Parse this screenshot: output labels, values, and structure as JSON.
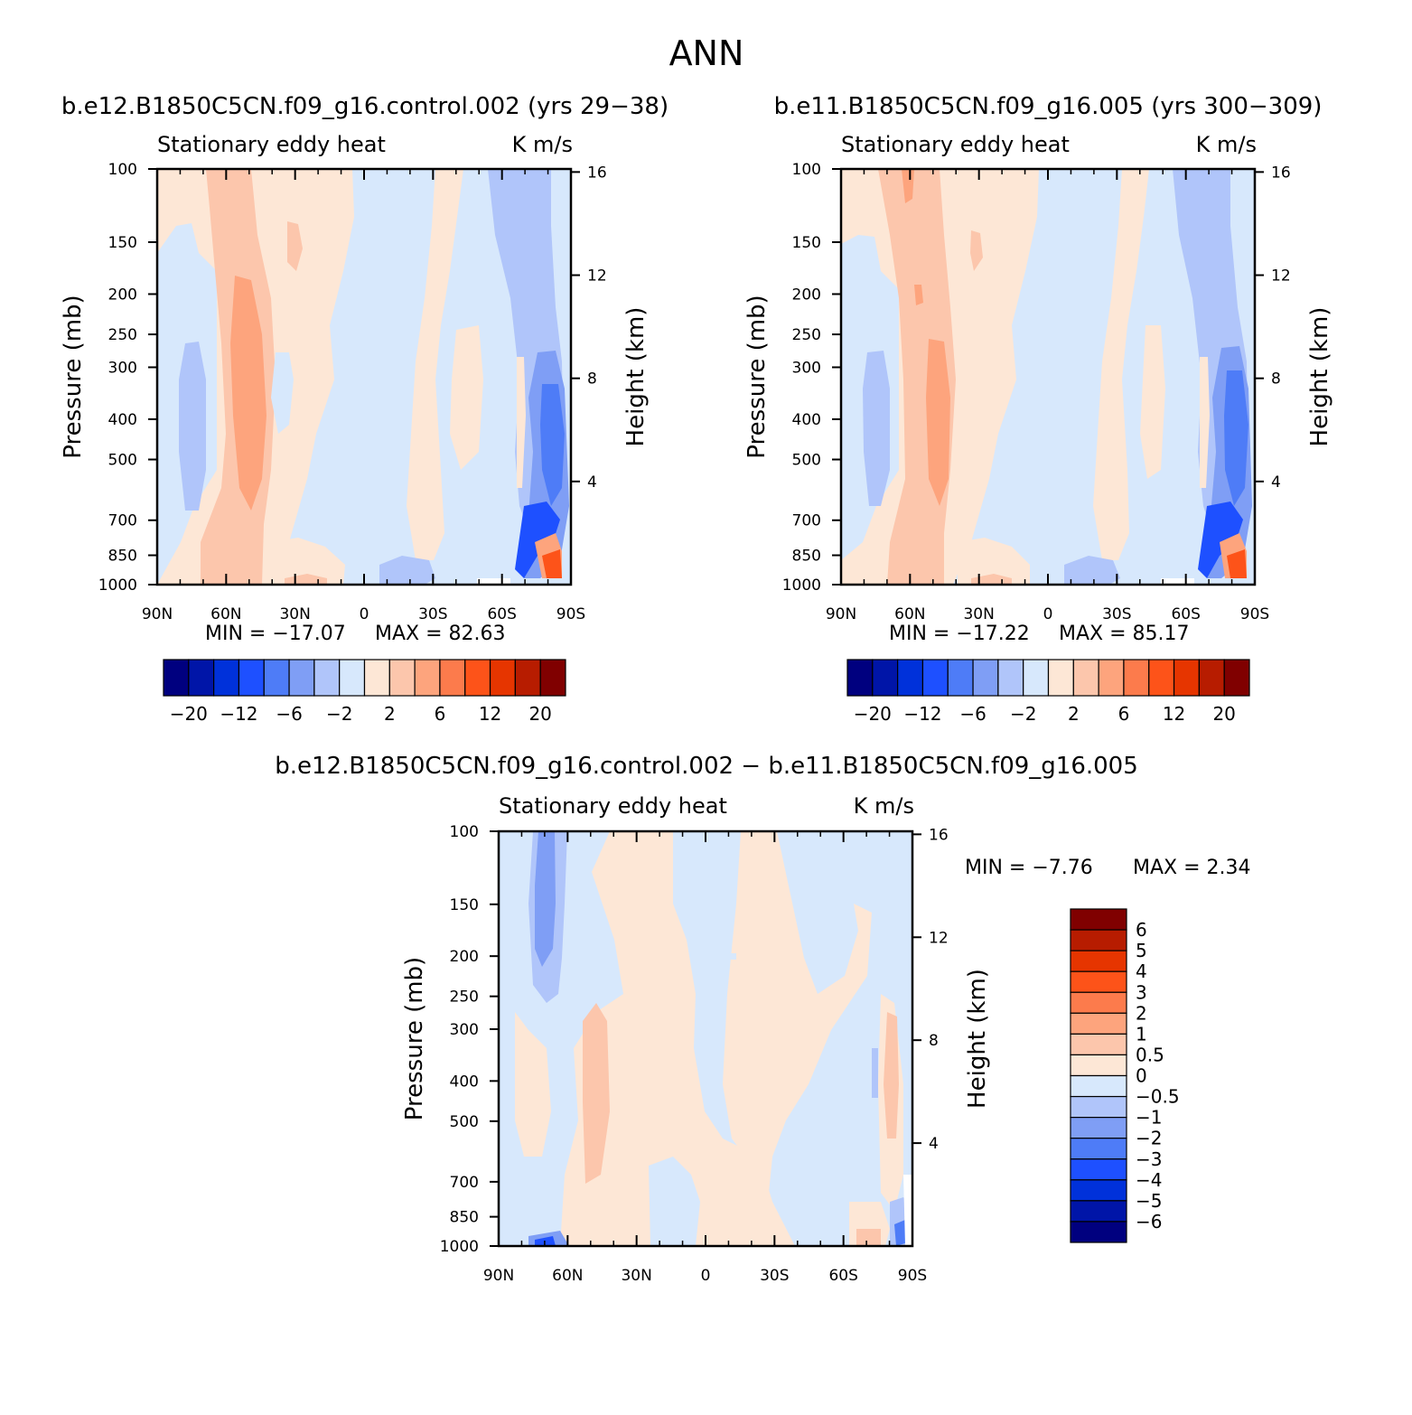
{
  "figure": {
    "title": "ANN",
    "colors": {
      "full_levels": [
        "#00007f",
        "#0015a8",
        "#0031da",
        "#1e50ff",
        "#4e7cf7",
        "#7f9ef5",
        "#b0c5fa",
        "#d7e8fc",
        "#fde7d6",
        "#fcc6ac",
        "#fda47d",
        "#fc7b4c",
        "#fd5319",
        "#e63500",
        "#b71c00",
        "#800000"
      ],
      "diff_levels": [
        "#00007f",
        "#0015a8",
        "#0031da",
        "#1e50ff",
        "#4e7cf7",
        "#7f9ef5",
        "#b0c5fa",
        "#d7e8fc",
        "#fde7d6",
        "#fcc6ac",
        "#fda47d",
        "#fc7b4c",
        "#fd5319",
        "#e63500",
        "#b71c00",
        "#800000"
      ]
    }
  },
  "chart_data": [
    {
      "type": "heatmap",
      "panel": "top-left",
      "case_title": "b.e12.B1850C5CN.f09_g16.control.002 (yrs 29−38)",
      "variable": "Stationary eddy heat",
      "units": "K m/s",
      "ylabel": "Pressure (mb)",
      "y2label": "Height (km)",
      "x_ticks": [
        "90N",
        "60N",
        "30N",
        "0",
        "30S",
        "60S",
        "90S"
      ],
      "y_ticks": [
        "100",
        "150",
        "200",
        "250",
        "300",
        "400",
        "500",
        "700",
        "850",
        "1000"
      ],
      "y2_ticks": [
        "16",
        "12",
        "8",
        "4"
      ],
      "min_label": "MIN = −17.07",
      "max_label": "MAX =  82.63",
      "colorbar_labels": [
        "−20",
        "−12",
        "−6",
        "−2",
        "2",
        "6",
        "12",
        "20"
      ]
    },
    {
      "type": "heatmap",
      "panel": "top-right",
      "case_title": "b.e11.B1850C5CN.f09_g16.005 (yrs 300−309)",
      "variable": "Stationary eddy heat",
      "units": "K m/s",
      "ylabel": "Pressure (mb)",
      "y2label": "Height (km)",
      "x_ticks": [
        "90N",
        "60N",
        "30N",
        "0",
        "30S",
        "60S",
        "90S"
      ],
      "y_ticks": [
        "100",
        "150",
        "200",
        "250",
        "300",
        "400",
        "500",
        "700",
        "850",
        "1000"
      ],
      "y2_ticks": [
        "16",
        "12",
        "8",
        "4"
      ],
      "min_label": "MIN = −17.22",
      "max_label": "MAX =  85.17",
      "colorbar_labels": [
        "−20",
        "−12",
        "−6",
        "−2",
        "2",
        "6",
        "12",
        "20"
      ]
    },
    {
      "type": "heatmap",
      "panel": "bottom",
      "case_title": "b.e12.B1850C5CN.f09_g16.control.002 − b.e11.B1850C5CN.f09_g16.005",
      "variable": "Stationary eddy heat",
      "units": "K m/s",
      "ylabel": "Pressure (mb)",
      "y2label": "Height (km)",
      "x_ticks": [
        "90N",
        "60N",
        "30N",
        "0",
        "30S",
        "60S",
        "90S"
      ],
      "y_ticks": [
        "100",
        "150",
        "200",
        "250",
        "300",
        "400",
        "500",
        "700",
        "850",
        "1000"
      ],
      "y2_ticks": [
        "16",
        "12",
        "8",
        "4"
      ],
      "min_label": "MIN =   −7.76",
      "max_label": "MAX =    2.34",
      "colorbar_labels": [
        "6",
        "5",
        "4",
        "3",
        "2",
        "1",
        "0.5",
        "0",
        "−0.5",
        "−1",
        "−2",
        "−3",
        "−4",
        "−5",
        "−6"
      ]
    }
  ]
}
